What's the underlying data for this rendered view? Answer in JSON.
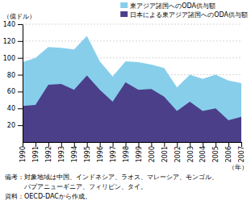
{
  "chart_data": {
    "type": "area",
    "x": [
      1990,
      1991,
      1992,
      1993,
      1994,
      1995,
      1996,
      1997,
      1998,
      1999,
      2000,
      2001,
      2002,
      2003,
      2004,
      2005,
      2006,
      2007
    ],
    "series": [
      {
        "name": "東アジア諸国へのODA供与額",
        "color": "#87CEEB",
        "values": [
          95,
          100,
          113,
          112,
          110,
          126,
          96,
          78,
          96,
          95,
          92,
          88,
          65,
          80,
          75,
          80,
          73,
          70
        ]
      },
      {
        "name": "日本による東アジア諸国へのODA供与額",
        "color": "#4B3F8A",
        "values": [
          43,
          44,
          68,
          69,
          62,
          79,
          62,
          48,
          71,
          62,
          63,
          54,
          37,
          48,
          37,
          40,
          26,
          30
        ]
      }
    ],
    "y_label": "（億ドル）",
    "x_label": "（年）",
    "xlim": [
      1990,
      2007
    ],
    "xticks": [
      1990,
      1991,
      1992,
      1993,
      1994,
      1995,
      1996,
      1997,
      1998,
      1999,
      2000,
      2001,
      2002,
      2003,
      2004,
      2005,
      2006,
      2007
    ],
    "ylim": [
      0,
      140
    ],
    "yticks": [
      20,
      40,
      60,
      80,
      100,
      120,
      140
    ],
    "grid": true,
    "legend": "upper right",
    "annotations": [
      "備考：対象地域は中国、インドネシア、ラオス、マレーシア、モンゴル、",
      "　　　パプアニューギニア、フィリピン、タイ。",
      "資料：OECD-DACから作成。"
    ]
  }
}
